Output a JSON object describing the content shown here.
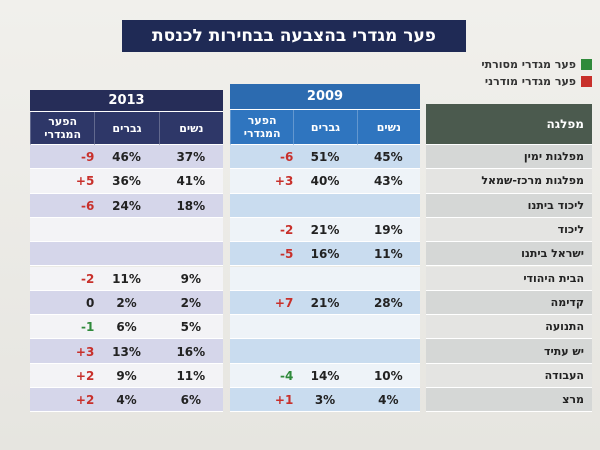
{
  "title": "פער מגדרי בהצבעה בבחירות לכנסת",
  "legend": [
    {
      "label": "פער מגדרי מסורתי",
      "color": "#2f8a3b"
    },
    {
      "label": "פער מגדרי מודרני",
      "color": "#c8302b"
    }
  ],
  "party_header": "מפלגה",
  "parties": [
    "מפלגות ימין",
    "מפלגות מרכז-שמאל",
    "ליכוד ביתנו",
    "ליכוד",
    "ישראל ביתנו",
    "הבית היהודי",
    "קדימה",
    "התנועה",
    "יש עתיד",
    "העבודה",
    "מרצ"
  ],
  "tables": [
    {
      "year": "2009",
      "columns": [
        "נשים",
        "גברים",
        "הפער המגדרי"
      ],
      "rows": [
        [
          "45%",
          "51%",
          "-6"
        ],
        [
          "43%",
          "40%",
          "+3"
        ],
        null,
        [
          "19%",
          "21%",
          "-2"
        ],
        [
          "11%",
          "16%",
          "-5"
        ],
        null,
        [
          "28%",
          "21%",
          "+7"
        ],
        null,
        null,
        [
          "10%",
          "14%",
          "-4"
        ],
        [
          "4%",
          "3%",
          "+1"
        ]
      ],
      "gap_colors": [
        "#c8302b",
        "#c8302b",
        null,
        "#c8302b",
        "#c8302b",
        null,
        "#c8302b",
        null,
        null,
        "#2f8a3b",
        "#c8302b"
      ]
    },
    {
      "year": "2013",
      "columns": [
        "נשים",
        "גברים",
        "הפער המגדרי"
      ],
      "rows": [
        [
          "37%",
          "46%",
          "-9"
        ],
        [
          "41%",
          "36%",
          "+5"
        ],
        [
          "18%",
          "24%",
          "-6"
        ],
        null,
        null,
        [
          "9%",
          "11%",
          "-2"
        ],
        [
          "2%",
          "2%",
          "0"
        ],
        [
          "5%",
          "6%",
          "-1"
        ],
        [
          "16%",
          "13%",
          "+3"
        ],
        [
          "11%",
          "9%",
          "+2"
        ],
        [
          "6%",
          "4%",
          "+2"
        ]
      ],
      "gap_colors": [
        "#c8302b",
        "#c8302b",
        "#c8302b",
        null,
        null,
        "#c8302b",
        "#222222",
        "#2f8a3b",
        "#c8302b",
        "#c8302b",
        "#c8302b"
      ]
    }
  ]
}
